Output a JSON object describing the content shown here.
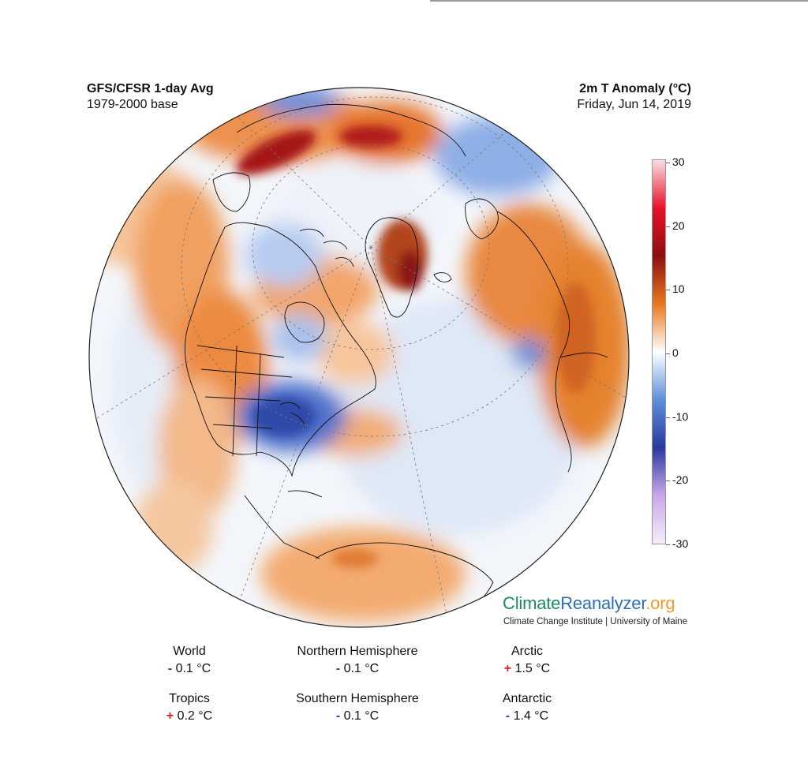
{
  "header": {
    "left_title": "GFS/CFSR 1-day Avg",
    "left_subtitle": "1979-2000 base",
    "right_title": "2m T Anomaly (°C)",
    "right_subtitle": "Friday, Jun 14, 2019"
  },
  "colorbar": {
    "ticks": [
      "30",
      "20",
      "10",
      "0",
      "-10",
      "-20",
      "-30"
    ],
    "colors": [
      "#f7dfe3",
      "#e8112a",
      "#8b0f0f",
      "#e8781f",
      "#ffffff",
      "#5e8fd9",
      "#2a3a9e",
      "#c9a8e8",
      "#f4eef8"
    ]
  },
  "brand": {
    "part1": "Climate",
    "part2": "Reanalyzer",
    "part3": ".org",
    "subtitle": "Climate Change Institute | University of Maine"
  },
  "stats": [
    {
      "label": "World",
      "sign": "-",
      "value": "0.1 °C"
    },
    {
      "label": "Northern Hemisphere",
      "sign": "-",
      "value": "0.1 °C"
    },
    {
      "label": "Arctic",
      "sign": "+",
      "value": "1.5 °C"
    },
    {
      "label": "Tropics",
      "sign": "+",
      "value": "0.2 °C"
    },
    {
      "label": "Southern Hemisphere",
      "sign": "-",
      "value": "0.1 °C"
    },
    {
      "label": "Antarctic",
      "sign": "-",
      "value": "1.4 °C"
    }
  ]
}
